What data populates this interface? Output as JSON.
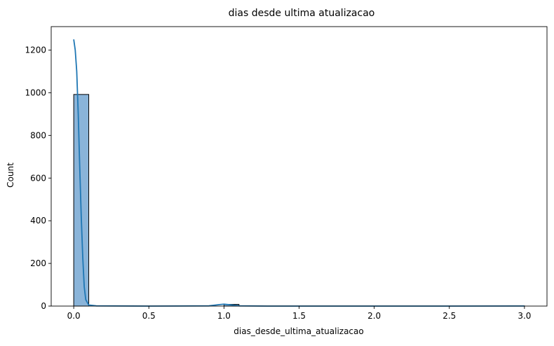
{
  "chart_data": {
    "type": "bar",
    "title": "dias desde ultima atualizacao",
    "xlabel": "dias_desde_ultima_atualizacao",
    "ylabel": "Count",
    "xlim": [
      -0.15,
      3.15
    ],
    "ylim": [
      0,
      1310
    ],
    "xticks": [
      0.0,
      0.5,
      1.0,
      1.5,
      2.0,
      2.5,
      3.0
    ],
    "xtick_labels": [
      "0.0",
      "0.5",
      "1.0",
      "1.5",
      "2.0",
      "2.5",
      "3.0"
    ],
    "yticks": [
      0,
      200,
      400,
      600,
      800,
      1000,
      1200
    ],
    "ytick_labels": [
      "0",
      "200",
      "400",
      "600",
      "800",
      "1000",
      "1200"
    ],
    "grid": false,
    "bin_width": 0.1,
    "bins": [
      {
        "x0": 0.0,
        "x1": 0.1,
        "count": 992
      },
      {
        "x0": 1.0,
        "x1": 1.1,
        "count": 8
      },
      {
        "x0": 2.9,
        "x1": 3.0,
        "count": 1
      }
    ],
    "kde": [
      [
        0.0,
        1250
      ],
      [
        0.01,
        1200
      ],
      [
        0.02,
        1100
      ],
      [
        0.03,
        900
      ],
      [
        0.04,
        650
      ],
      [
        0.05,
        420
      ],
      [
        0.06,
        230
      ],
      [
        0.07,
        90
      ],
      [
        0.08,
        30
      ],
      [
        0.1,
        5
      ],
      [
        0.15,
        1
      ],
      [
        0.5,
        0
      ],
      [
        0.9,
        1
      ],
      [
        0.97,
        7
      ],
      [
        1.0,
        9
      ],
      [
        1.03,
        7
      ],
      [
        1.1,
        1
      ],
      [
        1.3,
        0
      ],
      [
        2.5,
        0
      ],
      [
        2.95,
        0.3
      ],
      [
        3.0,
        0.5
      ]
    ],
    "colors": {
      "bar_fill": "#8ab4d9",
      "bar_edge": "#000000",
      "kde_line": "#1f77b4"
    }
  }
}
